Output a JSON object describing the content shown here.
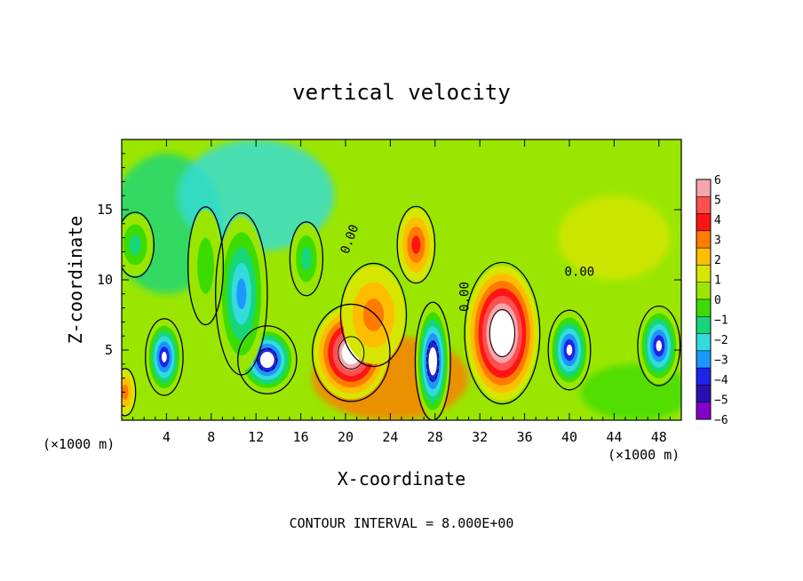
{
  "chart_data": {
    "type": "heatmap",
    "title": "vertical velocity",
    "xlabel": "X-coordinate",
    "ylabel": "Z-coordinate",
    "x_unit_label": "(×1000 m)",
    "colorbar_unit_label": "(×1000 m)",
    "footer": "CONTOUR INTERVAL = 8.000E+00",
    "xlim": [
      0,
      50
    ],
    "ylim": [
      0,
      20
    ],
    "x_ticks": [
      4,
      8,
      12,
      16,
      20,
      24,
      28,
      32,
      36,
      40,
      44,
      48
    ],
    "y_ticks": [
      5,
      10,
      15
    ],
    "contour_labels": [
      {
        "text": "0.00",
        "x": 20.7,
        "y": 12.8,
        "angle": -70
      },
      {
        "text": "0.00",
        "x": 31.0,
        "y": 8.8,
        "angle": -90
      },
      {
        "text": "0.00",
        "x": 40.9,
        "y": 10.3,
        "angle": 0
      }
    ],
    "colorbar": {
      "levels": [
        6,
        5,
        4,
        3,
        2,
        1,
        0,
        -1,
        -2,
        -3,
        -4,
        -5,
        -6
      ],
      "level_labels": [
        "6",
        "5",
        "4",
        "3",
        "2",
        "1",
        "0",
        "−1",
        "−2",
        "−3",
        "−4",
        "−5",
        "−6"
      ],
      "colors": [
        "#f5a6ad",
        "#ff5050",
        "#ff1414",
        "#ff7b00",
        "#ffbd00",
        "#d6e600",
        "#9ae600",
        "#3ddc00",
        "#16d67a",
        "#33dcdc",
        "#1e96ff",
        "#1f24e8",
        "#2a0fb0",
        "#8200c8"
      ]
    },
    "features": [
      {
        "kind": "updraft",
        "x": 20.5,
        "y": 4.8,
        "rx": 3.3,
        "ry": 3.3,
        "peak": 8
      },
      {
        "kind": "updraft",
        "x": 34.0,
        "y": 6.2,
        "rx": 3.2,
        "ry": 4.8,
        "peak": 9
      },
      {
        "kind": "updraft",
        "x": 26.3,
        "y": 12.5,
        "rx": 1.6,
        "ry": 2.6,
        "peak": 4
      },
      {
        "kind": "updraft",
        "x": 22.5,
        "y": 7.5,
        "rx": 2.8,
        "ry": 3.5,
        "peak": 3
      },
      {
        "kind": "updraft",
        "x": 0.3,
        "y": 2.0,
        "rx": 0.9,
        "ry": 1.6,
        "peak": 3
      },
      {
        "kind": "downdraft",
        "x": 27.8,
        "y": 4.2,
        "rx": 1.5,
        "ry": 4.0,
        "peak": -8
      },
      {
        "kind": "downdraft",
        "x": 13.0,
        "y": 4.3,
        "rx": 2.5,
        "ry": 2.3,
        "peak": -8
      },
      {
        "kind": "downdraft",
        "x": 10.7,
        "y": 9.0,
        "rx": 2.2,
        "ry": 5.5,
        "peak": -5
      },
      {
        "kind": "downdraft",
        "x": 3.8,
        "y": 4.5,
        "rx": 1.6,
        "ry": 2.6,
        "peak": -7
      },
      {
        "kind": "downdraft",
        "x": 40.0,
        "y": 5.0,
        "rx": 1.8,
        "ry": 2.7,
        "peak": -7
      },
      {
        "kind": "downdraft",
        "x": 48.0,
        "y": 5.3,
        "rx": 1.8,
        "ry": 2.7,
        "peak": -7
      },
      {
        "kind": "downdraft",
        "x": 1.2,
        "y": 12.5,
        "rx": 1.6,
        "ry": 2.2,
        "peak": -3
      },
      {
        "kind": "downdraft",
        "x": 16.5,
        "y": 11.5,
        "rx": 1.4,
        "ry": 2.5,
        "peak": -3
      },
      {
        "kind": "downdraft",
        "x": 7.5,
        "y": 11.0,
        "rx": 1.5,
        "ry": 4.0,
        "peak": -2
      }
    ]
  }
}
